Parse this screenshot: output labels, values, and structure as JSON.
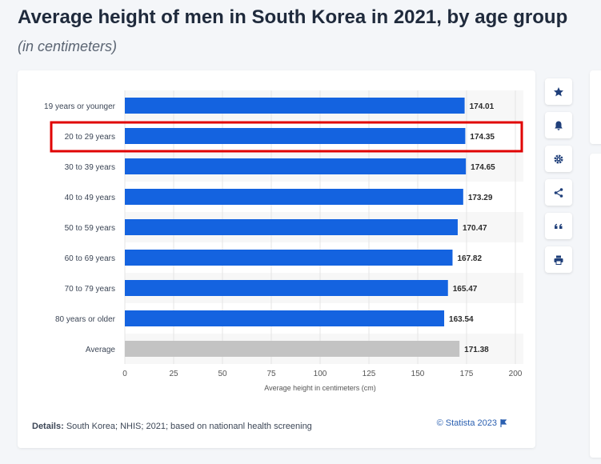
{
  "header": {
    "title": "Average height of men in South Korea in 2021, by age group",
    "subtitle": "(in centimeters)"
  },
  "footer": {
    "details_label": "Details:",
    "details_text": "South Korea; NHIS; 2021; based on nationanl health screening",
    "credit": "© Statista 2023"
  },
  "sidebar": {
    "icons": [
      "star-icon",
      "bell-icon",
      "gear-icon",
      "share-icon",
      "quote-icon",
      "print-icon"
    ]
  },
  "colors": {
    "bar": "#1463e0",
    "bar_average": "#c3c3c3",
    "highlight": "#e00000",
    "stripe": "#f7f7f7"
  },
  "chart_data": {
    "type": "bar",
    "orientation": "horizontal",
    "categories": [
      "19 years or younger",
      "20 to 29 years",
      "30 to 39 years",
      "40 to 49 years",
      "50 to 59 years",
      "60 to 69 years",
      "70 to 79 years",
      "80 years or older",
      "Average"
    ],
    "values": [
      174.01,
      174.35,
      174.65,
      173.29,
      170.47,
      167.82,
      165.47,
      163.54,
      171.38
    ],
    "value_labels": [
      "174.01",
      "174.35",
      "174.65",
      "173.29",
      "170.47",
      "167.82",
      "165.47",
      "163.54",
      "171.38"
    ],
    "xlabel": "Average height in centimeters (cm)",
    "xlim": [
      0,
      200
    ],
    "xticks": [
      0,
      25,
      50,
      75,
      100,
      125,
      150,
      175,
      200
    ],
    "highlighted_category": "20 to 29 years",
    "grid": true
  }
}
